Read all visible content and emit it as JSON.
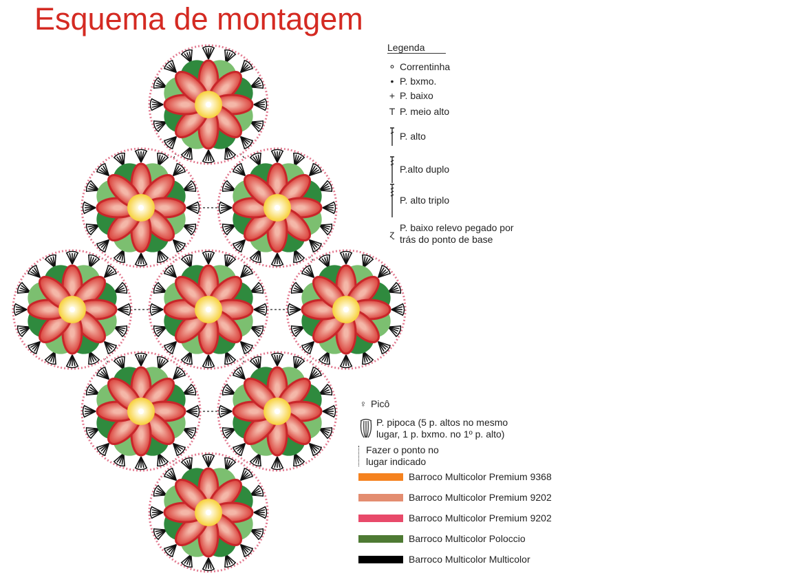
{
  "title": "Esquema de montagem",
  "legend": {
    "heading": "Legenda",
    "stitches": [
      {
        "icon": "chain-oval-icon",
        "label": "Correntinha"
      },
      {
        "icon": "slip-stitch-dot-icon",
        "label": "P. bxmo."
      },
      {
        "icon": "single-crochet-plus-icon",
        "label": "P. baixo"
      },
      {
        "icon": "half-double-crochet-icon",
        "label": "P. meio alto"
      },
      {
        "icon": "double-crochet-icon",
        "label": "P. alto"
      },
      {
        "icon": "treble-crochet-icon",
        "label": "P.alto duplo"
      },
      {
        "icon": "triple-treble-icon",
        "label": "P. alto triplo"
      },
      {
        "icon": "back-post-single-icon",
        "label_line1": "P. baixo relevo pegado por",
        "label_line2": "trás do ponto de base"
      }
    ],
    "extra": [
      {
        "icon": "picot-icon",
        "label": "Picô"
      },
      {
        "icon": "popcorn-icon",
        "label_line1": "P. pipoca (5 p. altos no mesmo",
        "label_line2": "lugar, 1 p. bxmo. no 1º p. alto)"
      },
      {
        "icon": "dashed-line-icon",
        "label_line1": "Fazer o ponto no",
        "label_line2": "lugar indicado"
      }
    ],
    "colors": [
      {
        "label": "Barroco Multicolor Premium 9368",
        "color": "#f5821f"
      },
      {
        "label": "Barroco Multicolor Premium 9202",
        "color": "#e38d70"
      },
      {
        "label": "Barroco Multicolor Premium 9202",
        "color": "#e84a6a"
      },
      {
        "label": "Barroco Multicolor Poloccio",
        "color": "#4e7a33"
      },
      {
        "label": "Barroco Multicolor Multicolor",
        "color": "#000000"
      }
    ]
  },
  "motif_colors": {
    "petal": "#d9403a",
    "petal_light": "#f4b7a8",
    "leaf": "#3d9a4a",
    "center": "#f7d03a",
    "fans": "#111111",
    "picot": "#e27a90"
  }
}
